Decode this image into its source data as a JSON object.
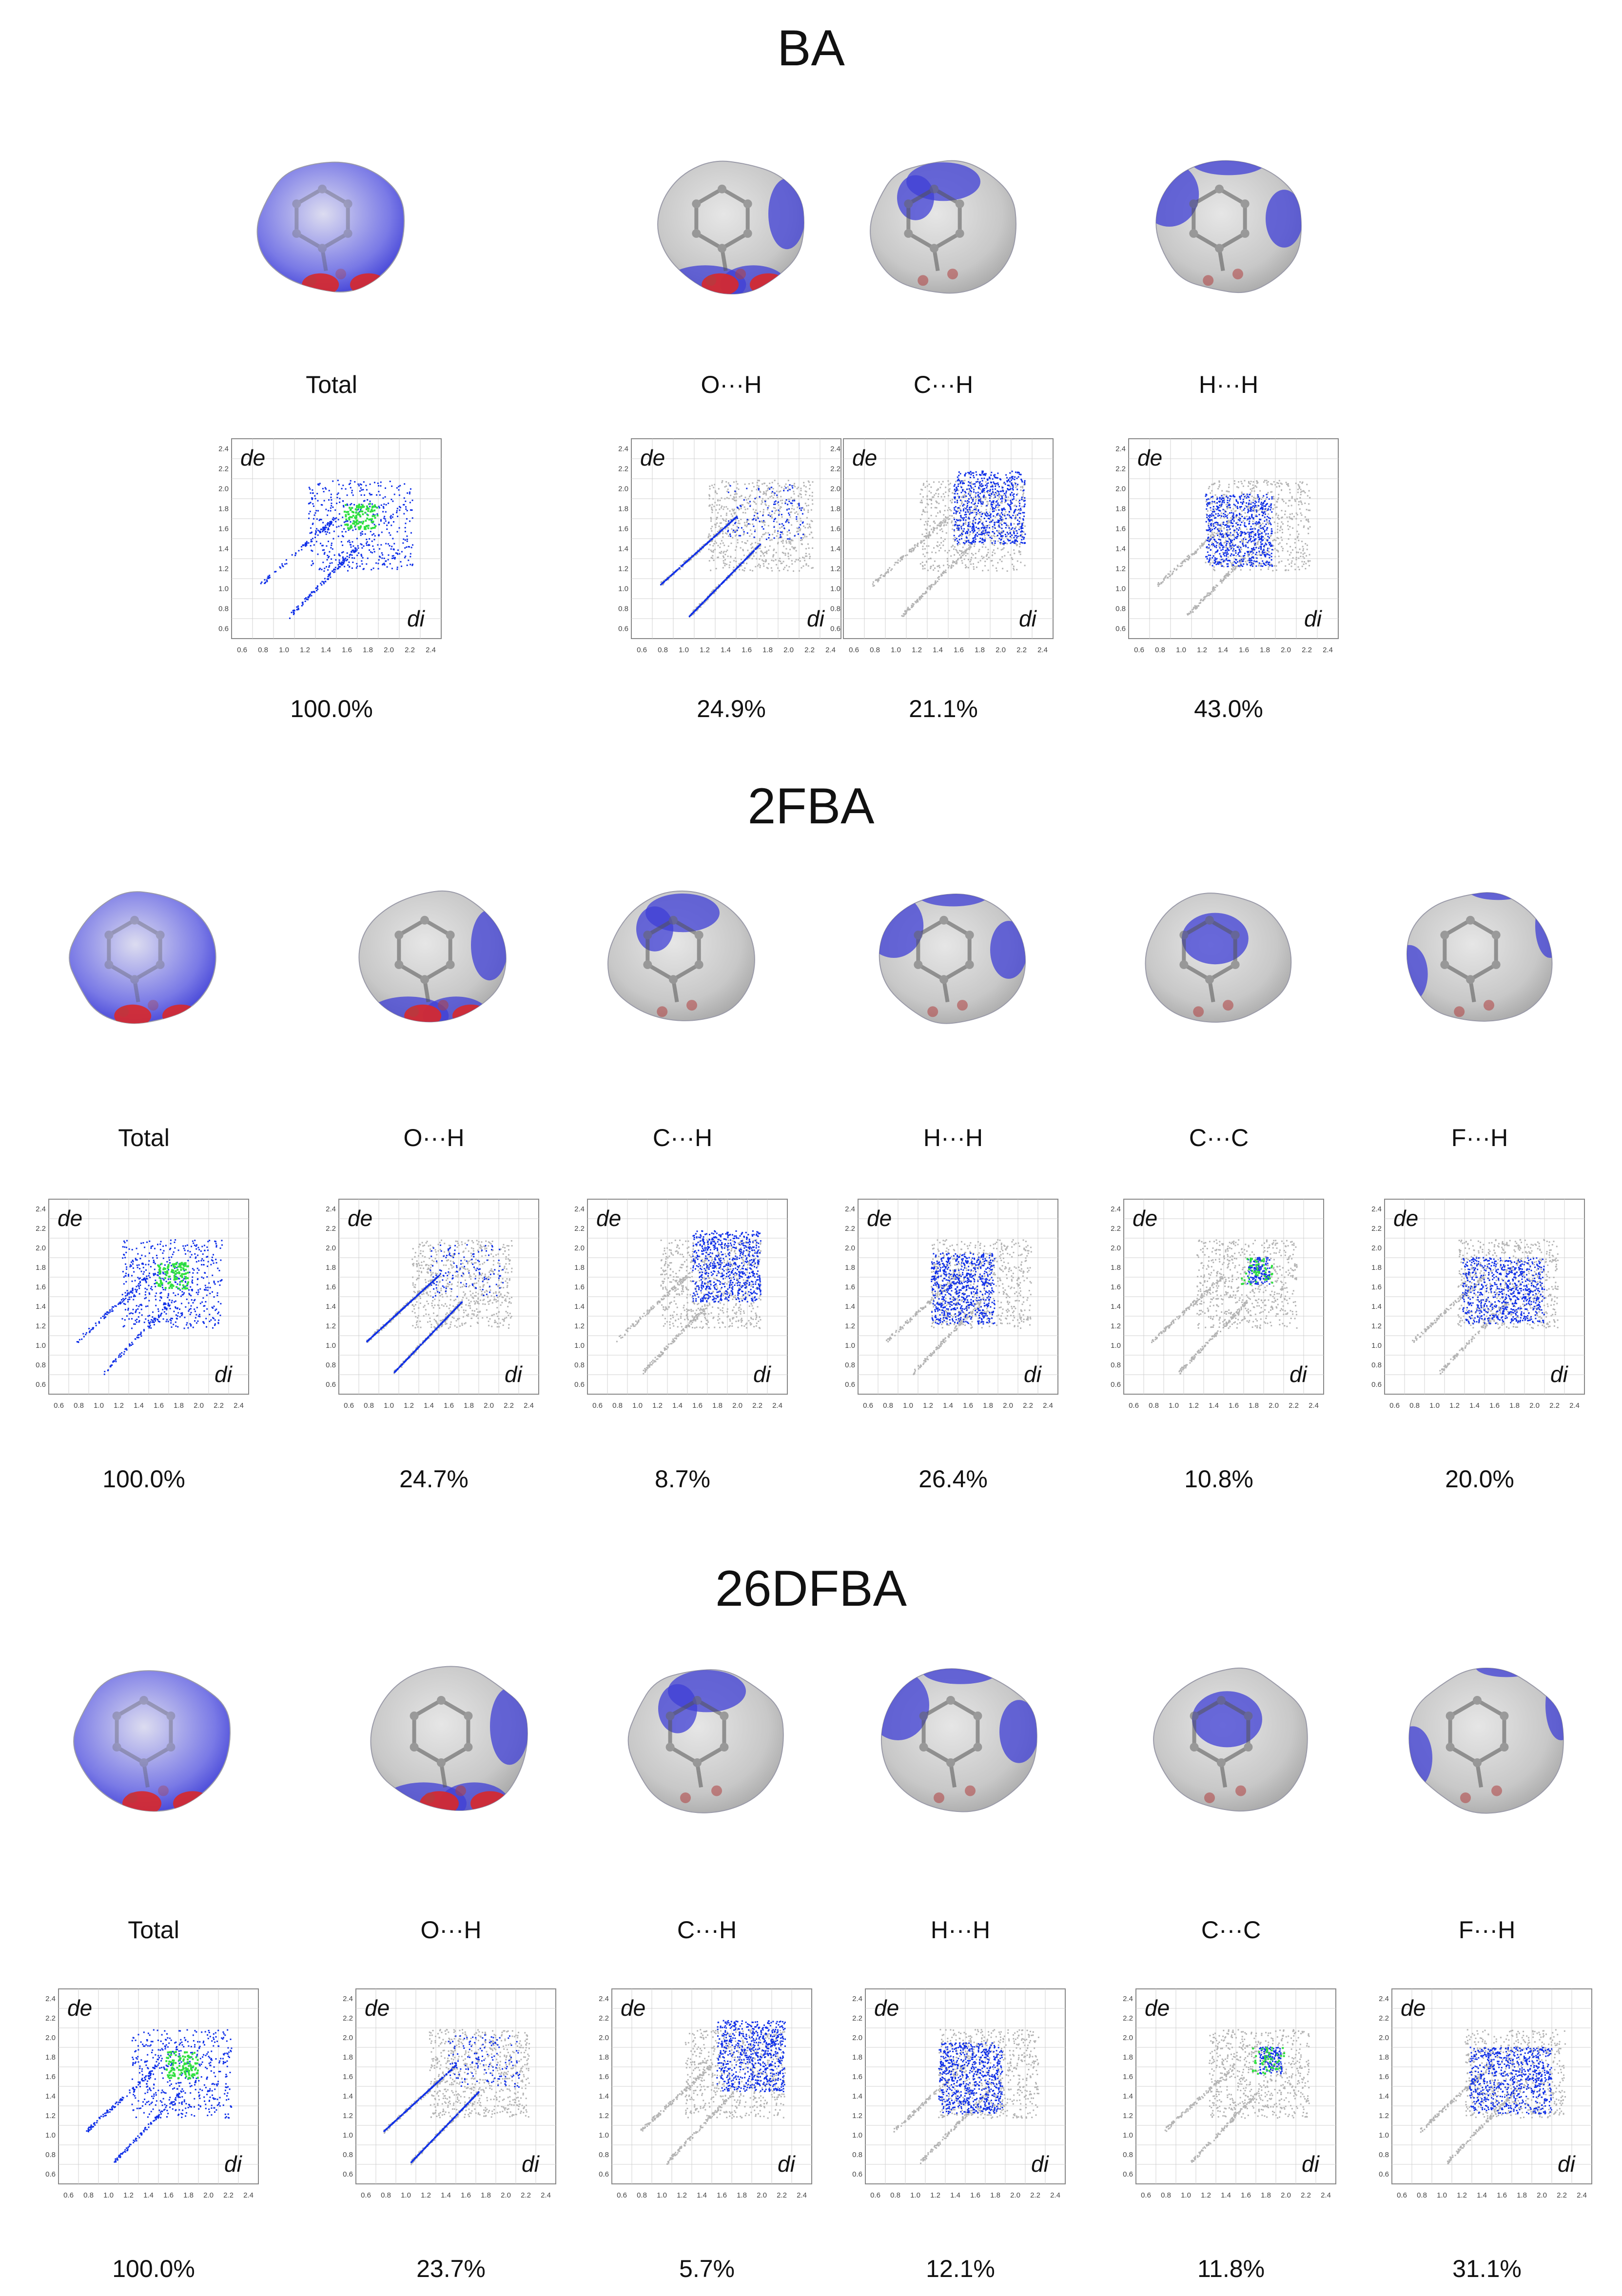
{
  "figure": {
    "axis_labels": {
      "y": "de",
      "x": "di"
    },
    "tick_labels": [
      "0.6",
      "0.8",
      "1.0",
      "1.2",
      "1.4",
      "1.6",
      "1.8",
      "2.0",
      "2.2",
      "2.4"
    ],
    "sections": [
      {
        "title": "BA",
        "panels": [
          {
            "label": "Total",
            "percent": "100.0%",
            "highlight": "total"
          },
          {
            "label": "O···H",
            "percent": "24.9%",
            "highlight": "oh"
          },
          {
            "label": "C···H",
            "percent": "21.1%",
            "highlight": "ch"
          },
          {
            "label": "H···H",
            "percent": "43.0%",
            "highlight": "hh"
          }
        ]
      },
      {
        "title": "2FBA",
        "panels": [
          {
            "label": "Total",
            "percent": "100.0%",
            "highlight": "total"
          },
          {
            "label": "O···H",
            "percent": "24.7%",
            "highlight": "oh"
          },
          {
            "label": "C···H",
            "percent": "8.7%",
            "highlight": "ch"
          },
          {
            "label": "H···H",
            "percent": "26.4%",
            "highlight": "hh"
          },
          {
            "label": "C···C",
            "percent": "10.8%",
            "highlight": "cc"
          },
          {
            "label": "F···H",
            "percent": "20.0%",
            "highlight": "fh"
          }
        ]
      },
      {
        "title": "26DFBA",
        "panels": [
          {
            "label": "Total",
            "percent": "100.0%",
            "highlight": "total"
          },
          {
            "label": "O···H",
            "percent": "23.7%",
            "highlight": "oh"
          },
          {
            "label": "C···H",
            "percent": "5.7%",
            "highlight": "ch"
          },
          {
            "label": "H···H",
            "percent": "12.1%",
            "highlight": "hh"
          },
          {
            "label": "C···C",
            "percent": "11.8%",
            "highlight": "cc"
          },
          {
            "label": "F···H",
            "percent": "31.1%",
            "highlight": "fh"
          }
        ]
      }
    ]
  },
  "colors": {
    "surface_grey": "#c8c8c8",
    "surface_blue": "#3f3fd6",
    "spot_red": "#d8282a",
    "points_grey": "#b4b4b4",
    "points_blue": "#1030e8",
    "points_green": "#30e040",
    "grid": "#d0d0d0"
  }
}
